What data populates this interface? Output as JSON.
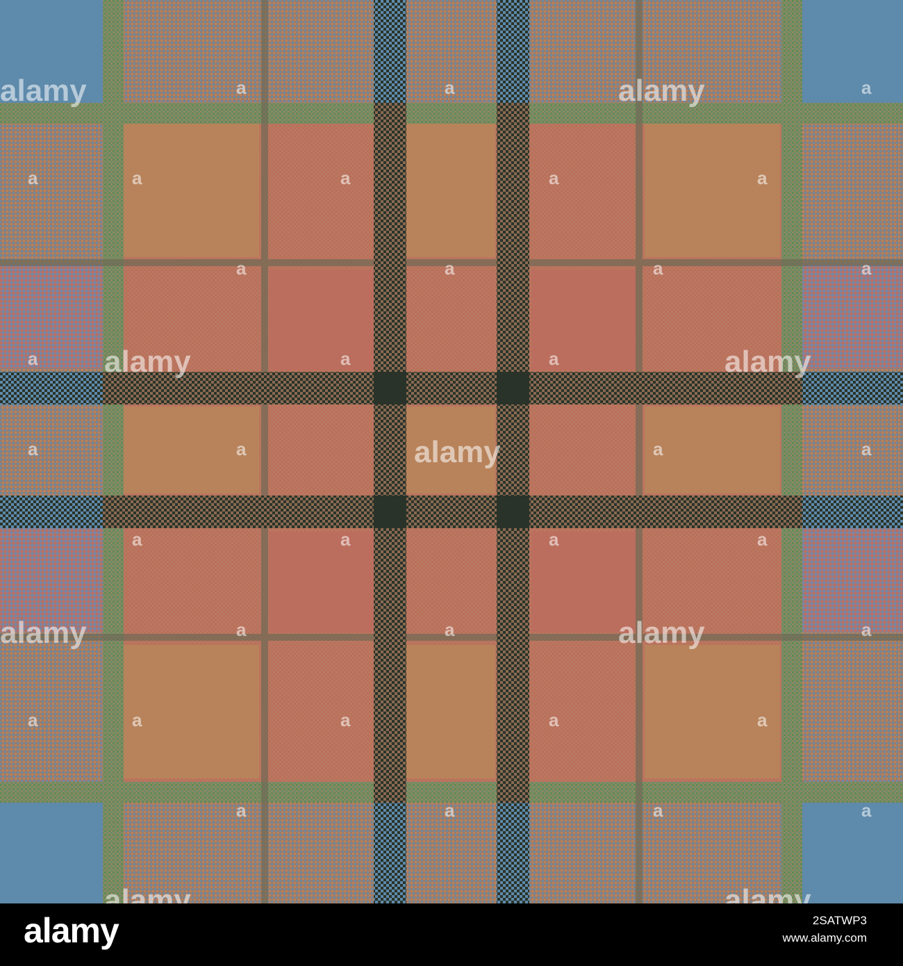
{
  "image": {
    "description_colors": {
      "blue": "#5e8aab",
      "tan": "#b8835b",
      "rose": "#bb6e5e",
      "dark": "#2a3329",
      "green": "#6a8a5c",
      "brownline": "#6f6a55"
    }
  },
  "watermark": {
    "word": "alamy",
    "glyph": "a"
  },
  "footer": {
    "logo": "alamy",
    "image_id": "2SATWP3",
    "url": "www.alamy.com"
  }
}
